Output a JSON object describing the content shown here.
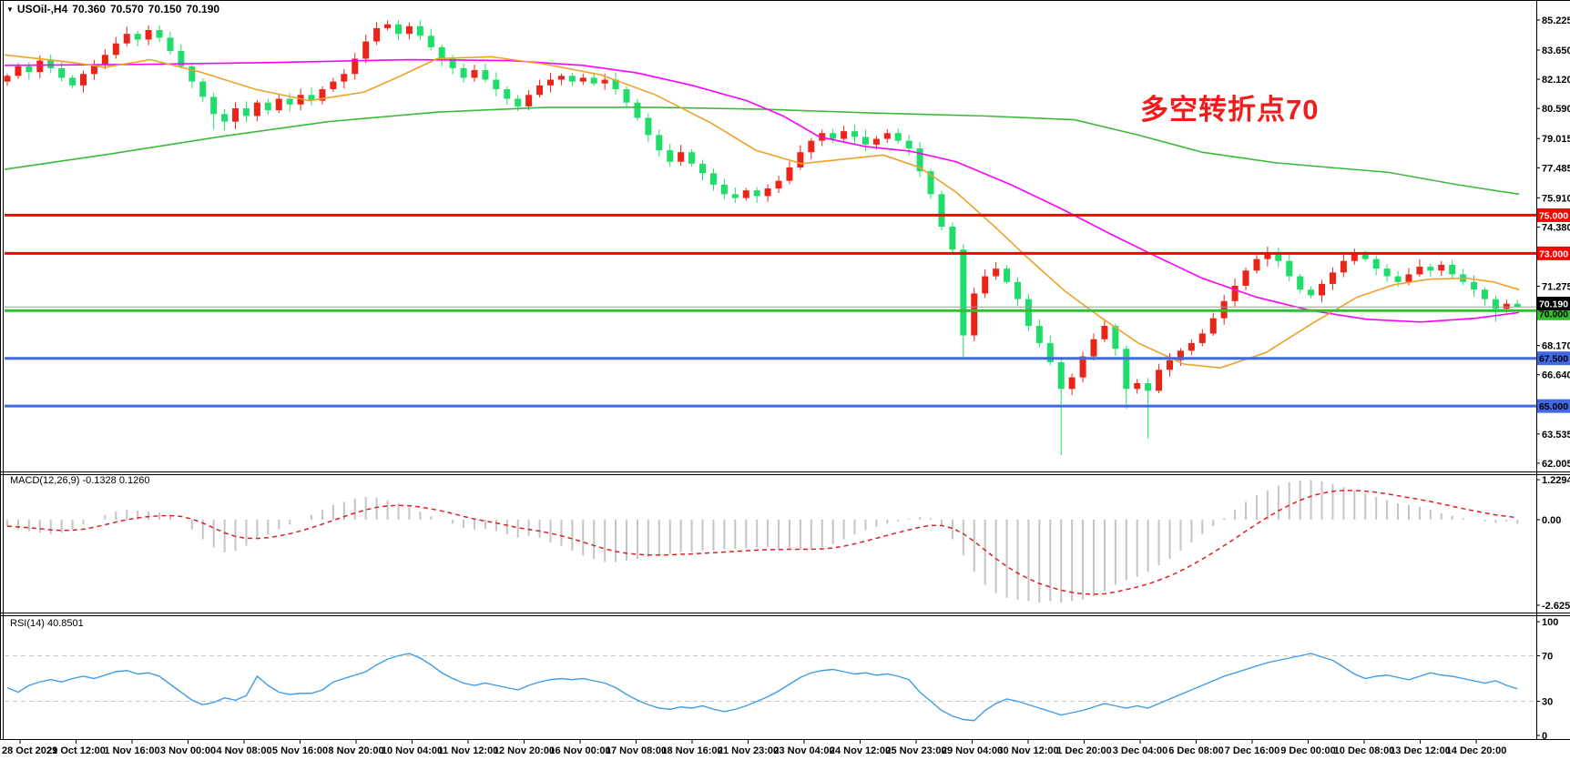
{
  "header": {
    "symbol": "USOil-,H4",
    "open": "70.360",
    "high": "70.570",
    "low": "70.150",
    "close": "70.190"
  },
  "annotation": {
    "text": "多空转折点70",
    "color": "#ef1c1c"
  },
  "colors": {
    "up": "#eb2417",
    "down": "#1fdd6a",
    "ma_green": "#3cb93c",
    "ma_orange": "#f0a028",
    "ma_magenta": "#ff00ff",
    "hline_red": "#ff0000",
    "hline_green": "#30c030",
    "hline_blue": "#4169e1",
    "bid_line": "#9a9a9a",
    "bid_badge_bg": "#000000",
    "bid_badge_fg": "#ffffff",
    "macd_hist": "#c4c4c4",
    "macd_signal": "#e01f1f",
    "rsi_line": "#3e9ce8",
    "level_dash": "#c8c8c8",
    "axis_text": "#000000"
  },
  "main_panel": {
    "price_labels": [
      {
        "text": "85.225",
        "v": 85.225
      },
      {
        "text": "83.650",
        "v": 83.65
      },
      {
        "text": "82.120",
        "v": 82.12
      },
      {
        "text": "80.590",
        "v": 80.59
      },
      {
        "text": "79.015",
        "v": 79.015
      },
      {
        "text": "77.485",
        "v": 77.485
      },
      {
        "text": "75.910",
        "v": 75.91
      },
      {
        "text": "74.380",
        "v": 74.38
      },
      {
        "text": "72.850",
        "v": 72.85
      },
      {
        "text": "71.275",
        "v": 71.275
      },
      {
        "text": "69.745",
        "v": 69.745
      },
      {
        "text": "68.170",
        "v": 68.17
      },
      {
        "text": "66.640",
        "v": 66.64
      },
      {
        "text": "63.535",
        "v": 63.535
      },
      {
        "text": "62.005",
        "v": 62.005
      }
    ],
    "h_lines": [
      {
        "label": "75.000",
        "price": 75.0,
        "color_key": "hline_red",
        "badge_fg": "#ffffff"
      },
      {
        "label": "73.000",
        "price": 73.0,
        "color_key": "hline_red",
        "badge_fg": "#ffffff"
      },
      {
        "label": "70.000",
        "price": 70.0,
        "color_key": "hline_green",
        "badge_fg": "#000000"
      },
      {
        "label": "67.500",
        "price": 67.5,
        "color_key": "hline_blue",
        "badge_fg": "#000000"
      },
      {
        "label": "65.000",
        "price": 65.0,
        "color_key": "hline_blue",
        "badge_fg": "#000000"
      }
    ],
    "bid": {
      "label": "70.190",
      "price": 70.19
    }
  },
  "macd_panel": {
    "label": "MACD(12,26,9) -0.1328 0.1260",
    "axis_labels": [
      {
        "text": "1.2294",
        "v": 1.2294
      },
      {
        "text": "0.00",
        "v": 0
      },
      {
        "text": "-2.6252",
        "v": -2.6252
      }
    ]
  },
  "rsi_panel": {
    "label": "RSI(14) 40.8501",
    "axis_labels": [
      {
        "text": "100",
        "v": 100
      },
      {
        "text": "70",
        "v": 70
      },
      {
        "text": "30",
        "v": 30
      },
      {
        "text": "0",
        "v": 0
      }
    ],
    "levels": [
      70,
      30
    ]
  },
  "time_axis": {
    "labels": [
      "28 Oct 2021",
      "29 Oct 12:00",
      "1 Nov 16:00",
      "3 Nov 00:00",
      "4 Nov 08:00",
      "5 Nov 16:00",
      "8 Nov 20:00",
      "10 Nov 04:00",
      "11 Nov 12:00",
      "12 Nov 20:00",
      "16 Nov 00:00",
      "17 Nov 08:00",
      "18 Nov 16:00",
      "21 Nov 23:00",
      "23 Nov 04:00",
      "24 Nov 12:00",
      "25 Nov 23:00",
      "29 Nov 04:00",
      "30 Nov 12:00",
      "1 Dec 20:00",
      "3 Dec 04:00",
      "6 Dec 08:00",
      "7 Dec 16:00",
      "9 Dec 00:00",
      "10 Dec 08:00",
      "13 Dec 12:00",
      "14 Dec 20:00"
    ]
  },
  "chart_data": {
    "type": "candlestick",
    "symbol": "USOil-",
    "timeframe": "H4",
    "price_range": [
      62.005,
      85.225
    ],
    "candles": {
      "first_open": 82.0,
      "closes": [
        82.3,
        82.8,
        82.5,
        83.1,
        82.7,
        82.2,
        81.8,
        82.4,
        82.9,
        83.4,
        84.0,
        84.5,
        84.2,
        84.7,
        84.3,
        83.6,
        82.8,
        82.0,
        81.2,
        80.3,
        79.9,
        80.6,
        80.2,
        80.9,
        80.5,
        81.1,
        80.8,
        81.3,
        81.0,
        81.6,
        82.0,
        82.4,
        83.2,
        84.1,
        84.8,
        85.0,
        84.5,
        84.9,
        84.4,
        83.8,
        83.2,
        82.7,
        82.2,
        82.6,
        82.1,
        81.6,
        81.1,
        80.7,
        81.3,
        81.8,
        82.1,
        82.3,
        82.0,
        82.2,
        81.9,
        82.1,
        81.6,
        80.9,
        80.1,
        79.2,
        78.4,
        77.8,
        78.3,
        77.7,
        77.2,
        76.6,
        76.1,
        75.9,
        76.3,
        76.0,
        76.4,
        76.8,
        77.5,
        78.3,
        78.9,
        79.3,
        79.0,
        79.4,
        79.1,
        78.7,
        79.0,
        79.3,
        78.9,
        78.5,
        77.3,
        76.1,
        74.4,
        73.2,
        68.7,
        70.9,
        71.8,
        72.2,
        71.5,
        70.6,
        69.2,
        68.3,
        67.3,
        65.9,
        66.5,
        67.6,
        68.5,
        69.2,
        68.0,
        65.9,
        66.2,
        65.8,
        66.9,
        67.4,
        67.9,
        68.3,
        68.8,
        69.6,
        70.5,
        71.3,
        72.1,
        72.7,
        73.0,
        72.6,
        71.8,
        71.1,
        70.8,
        71.4,
        72.0,
        72.6,
        73.0,
        72.7,
        72.2,
        71.8,
        71.5,
        71.9,
        72.3,
        72.1,
        72.4,
        71.9,
        71.5,
        71.1,
        70.6,
        70.1,
        70.36,
        70.19
      ],
      "special_highs": {
        "13": 84.95,
        "34": 85.12,
        "35": 85.2,
        "37": 85.1,
        "91": 72.55,
        "116": 73.35,
        "124": 73.25,
        "139": 70.57
      },
      "special_lows": {
        "19": 79.5,
        "20": 79.45,
        "67": 75.65,
        "88": 67.45,
        "97": 62.43,
        "103": 64.85,
        "105": 63.3,
        "137": 69.42,
        "139": 70.15
      }
    },
    "ma_lines": [
      {
        "name": "ma-green-slow",
        "color_key": "ma_green",
        "points": [
          [
            5,
            77.4
          ],
          [
            120,
            78.2
          ],
          [
            240,
            79.1
          ],
          [
            360,
            79.9
          ],
          [
            480,
            80.4
          ],
          [
            600,
            80.65
          ],
          [
            720,
            80.65
          ],
          [
            840,
            80.55
          ],
          [
            960,
            80.35
          ],
          [
            1080,
            80.2
          ],
          [
            1180,
            80.0
          ],
          [
            1250,
            79.2
          ],
          [
            1320,
            78.3
          ],
          [
            1400,
            77.75
          ],
          [
            1460,
            77.5
          ],
          [
            1524,
            77.25
          ],
          [
            1600,
            76.6
          ],
          [
            1668,
            76.1
          ]
        ]
      },
      {
        "name": "ma-magenta",
        "color_key": "ma_magenta",
        "points": [
          [
            5,
            82.85
          ],
          [
            150,
            82.9
          ],
          [
            300,
            83.0
          ],
          [
            450,
            83.15
          ],
          [
            560,
            83.1
          ],
          [
            640,
            82.85
          ],
          [
            700,
            82.45
          ],
          [
            760,
            81.8
          ],
          [
            820,
            81.0
          ],
          [
            860,
            80.2
          ],
          [
            900,
            79.1
          ],
          [
            950,
            78.6
          ],
          [
            1000,
            78.35
          ],
          [
            1050,
            77.8
          ],
          [
            1110,
            76.6
          ],
          [
            1167,
            75.3
          ],
          [
            1220,
            74.0
          ],
          [
            1267,
            72.9
          ],
          [
            1320,
            71.7
          ],
          [
            1380,
            70.7
          ],
          [
            1440,
            70.0
          ],
          [
            1500,
            69.55
          ],
          [
            1560,
            69.4
          ],
          [
            1620,
            69.6
          ],
          [
            1668,
            69.9
          ]
        ]
      },
      {
        "name": "ma-orange",
        "color_key": "ma_orange",
        "points": [
          [
            5,
            83.4
          ],
          [
            80,
            83.0
          ],
          [
            115,
            82.75
          ],
          [
            165,
            83.15
          ],
          [
            220,
            82.5
          ],
          [
            280,
            81.6
          ],
          [
            340,
            81.0
          ],
          [
            400,
            81.45
          ],
          [
            440,
            82.3
          ],
          [
            480,
            83.2
          ],
          [
            540,
            83.3
          ],
          [
            600,
            82.9
          ],
          [
            660,
            82.35
          ],
          [
            720,
            81.3
          ],
          [
            780,
            79.85
          ],
          [
            830,
            78.4
          ],
          [
            880,
            77.7
          ],
          [
            930,
            77.95
          ],
          [
            970,
            78.15
          ],
          [
            1010,
            77.5
          ],
          [
            1050,
            76.2
          ],
          [
            1090,
            74.5
          ],
          [
            1130,
            72.7
          ],
          [
            1170,
            71.0
          ],
          [
            1210,
            69.6
          ],
          [
            1250,
            68.3
          ],
          [
            1300,
            67.2
          ],
          [
            1340,
            67.0
          ],
          [
            1390,
            67.8
          ],
          [
            1440,
            69.3
          ],
          [
            1490,
            70.7
          ],
          [
            1530,
            71.35
          ],
          [
            1570,
            71.65
          ],
          [
            1610,
            71.7
          ],
          [
            1640,
            71.5
          ],
          [
            1668,
            71.1
          ]
        ]
      }
    ],
    "macd": {
      "range": [
        -2.6252,
        1.2294
      ],
      "histogram": [
        -0.2,
        -0.3,
        -0.35,
        -0.4,
        -0.45,
        -0.4,
        -0.3,
        -0.15,
        0.0,
        0.15,
        0.25,
        0.3,
        0.28,
        0.25,
        0.22,
        0.15,
        0.0,
        -0.3,
        -0.6,
        -0.85,
        -1.0,
        -0.95,
        -0.8,
        -0.6,
        -0.45,
        -0.3,
        -0.15,
        0.0,
        0.15,
        0.3,
        0.45,
        0.55,
        0.65,
        0.7,
        0.68,
        0.6,
        0.5,
        0.38,
        0.25,
        0.1,
        0.0,
        -0.12,
        -0.25,
        -0.3,
        -0.28,
        -0.35,
        -0.45,
        -0.55,
        -0.5,
        -0.55,
        -0.7,
        -0.8,
        -0.95,
        -1.1,
        -1.2,
        -1.3,
        -1.3,
        -1.25,
        -1.2,
        -1.15,
        -1.1,
        -1.05,
        -1.0,
        -1.0,
        -0.95,
        -0.95,
        -0.9,
        -0.9,
        -0.88,
        -0.85,
        -0.85,
        -0.9,
        -0.88,
        -0.92,
        -0.9,
        -0.85,
        -0.75,
        -0.6,
        -0.45,
        -0.32,
        -0.22,
        -0.12,
        -0.05,
        0.03,
        0.08,
        0.05,
        -0.2,
        -0.6,
        -1.1,
        -1.6,
        -2.0,
        -2.25,
        -2.4,
        -2.45,
        -2.5,
        -2.55,
        -2.5,
        -2.55,
        -2.5,
        -2.45,
        -2.35,
        -2.2,
        -2.0,
        -1.85,
        -1.75,
        -1.6,
        -1.4,
        -1.2,
        -0.95,
        -0.7,
        -0.45,
        -0.2,
        0.05,
        0.3,
        0.55,
        0.75,
        0.9,
        1.05,
        1.15,
        1.2,
        1.22,
        1.18,
        1.1,
        1.0,
        0.9,
        0.8,
        0.7,
        0.6,
        0.5,
        0.45,
        0.4,
        0.3,
        0.2,
        0.12,
        0.05,
        0.0,
        -0.05,
        -0.1,
        -0.05,
        -0.13
      ]
    },
    "rsi": {
      "range": [
        0,
        100
      ],
      "values": [
        42,
        38,
        44,
        47,
        49,
        47,
        50,
        52,
        50,
        53,
        56,
        57,
        54,
        55,
        52,
        45,
        38,
        31,
        27,
        29,
        33,
        31,
        35,
        52,
        44,
        38,
        36,
        37,
        37,
        40,
        47,
        50,
        53,
        56,
        62,
        67,
        70,
        72,
        68,
        62,
        55,
        50,
        46,
        44,
        46,
        44,
        42,
        40,
        44,
        47,
        49,
        50,
        49,
        50,
        48,
        46,
        42,
        36,
        31,
        27,
        24,
        23,
        25,
        24,
        26,
        23,
        21,
        23,
        26,
        30,
        34,
        39,
        45,
        51,
        55,
        57,
        58,
        56,
        54,
        55,
        53,
        54,
        52,
        49,
        38,
        30,
        22,
        17,
        14,
        13,
        22,
        28,
        32,
        30,
        27,
        24,
        21,
        18,
        20,
        22,
        25,
        28,
        26,
        24,
        26,
        24,
        28,
        32,
        36,
        40,
        44,
        48,
        52,
        55,
        58,
        61,
        64,
        66,
        68,
        70,
        72,
        69,
        66,
        60,
        54,
        50,
        52,
        53,
        51,
        49,
        52,
        55,
        53,
        52,
        50,
        48,
        46,
        48,
        44,
        41
      ]
    }
  }
}
